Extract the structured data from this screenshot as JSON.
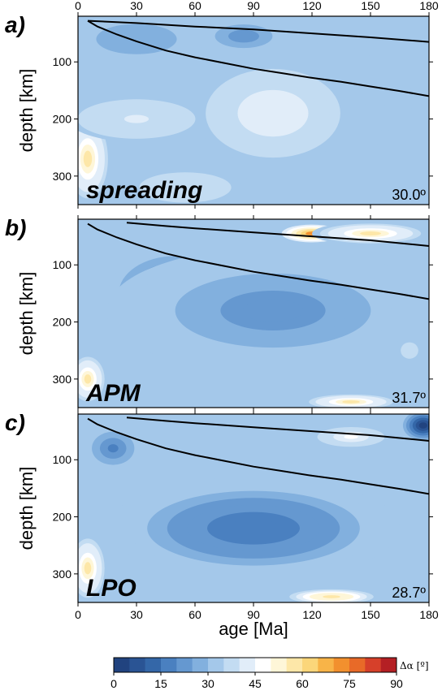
{
  "chart_data": {
    "type": "heatmap",
    "colorbar": {
      "label": "Δα [º]",
      "ticks": [
        "0",
        "15",
        "30",
        "45",
        "60",
        "75",
        "90"
      ],
      "range": [
        0,
        90
      ],
      "bins": 18,
      "colors": [
        "#21437f",
        "#2a5494",
        "#3467a8",
        "#4a80c0",
        "#6598d0",
        "#82b0de",
        "#a4c8ea",
        "#c3dcf2",
        "#e1edf9",
        "#ffffff",
        "#fef6d8",
        "#fde7a8",
        "#fbd67a",
        "#f8b448",
        "#f2902e",
        "#e86a28",
        "#d6402a",
        "#b41f24"
      ]
    },
    "xlabel": "age [Ma]",
    "x_ticks": [
      "0",
      "30",
      "60",
      "90",
      "120",
      "150",
      "180"
    ],
    "xlim": [
      0,
      180
    ],
    "ylabel": "depth [km]",
    "y_ticks": [
      "100",
      "200",
      "300"
    ],
    "ylim": [
      350,
      20
    ],
    "panels": [
      {
        "letter": "a)",
        "model": "spreading",
        "misfit": "30.0º",
        "lines": [
          {
            "x": [
              5,
              30,
              60,
              90,
              120,
              150,
              180
            ],
            "y": [
              28,
              32,
              38,
              43,
              50,
              57,
              65
            ]
          },
          {
            "x": [
              5,
              10,
              20,
              30,
              45,
              60,
              75,
              90,
              105,
              120,
              135,
              150,
              165,
              180
            ],
            "y": [
              28,
              38,
              52,
              64,
              80,
              92,
              102,
              112,
              120,
              128,
              135,
              143,
              151,
              160
            ]
          }
        ],
        "blobs": [
          {
            "cx": 30,
            "cy": 60,
            "rx": 35,
            "ry": 45,
            "v": 25
          },
          {
            "cx": 85,
            "cy": 55,
            "rx": 25,
            "ry": 35,
            "v": 22
          },
          {
            "cx": 140,
            "cy": 80,
            "rx": 20,
            "ry": 25,
            "v": 32
          },
          {
            "cx": 165,
            "cy": 200,
            "rx": 20,
            "ry": 55,
            "v": 31
          },
          {
            "cx": 55,
            "cy": 320,
            "rx": 40,
            "ry": 45,
            "v": 36
          },
          {
            "cx": 5,
            "cy": 270,
            "rx": 12,
            "ry": 80,
            "v": 55
          },
          {
            "cx": 100,
            "cy": 190,
            "rx": 40,
            "ry": 90,
            "v": 44
          },
          {
            "cx": 30,
            "cy": 200,
            "rx": 35,
            "ry": 40,
            "v": 41
          }
        ]
      },
      {
        "letter": "b)",
        "model": "APM",
        "misfit": "31.7º",
        "lines": [
          {
            "x": [
              25,
              45,
              60,
              90,
              120,
              150,
              180
            ],
            "y": [
              26,
              32,
              36,
              43,
              50,
              57,
              67
            ]
          },
          {
            "x": [
              5,
              10,
              20,
              30,
              45,
              60,
              75,
              90,
              105,
              120,
              135,
              150,
              165,
              180
            ],
            "y": [
              28,
              38,
              52,
              64,
              80,
              92,
              102,
              112,
              120,
              128,
              135,
              143,
              151,
              160
            ]
          }
        ],
        "blobs": [
          {
            "cx": 105,
            "cy": 200,
            "rx": 55,
            "ry": 45,
            "v": 3
          },
          {
            "cx": 50,
            "cy": 150,
            "rx": 40,
            "ry": 90,
            "v": 14
          },
          {
            "cx": 100,
            "cy": 180,
            "rx": 85,
            "ry": 110,
            "v": 22
          },
          {
            "cx": 120,
            "cy": 45,
            "rx": 18,
            "ry": 18,
            "v": 70
          },
          {
            "cx": 150,
            "cy": 45,
            "rx": 30,
            "ry": 20,
            "v": 55
          },
          {
            "cx": 5,
            "cy": 300,
            "rx": 10,
            "ry": 45,
            "v": 55
          },
          {
            "cx": 140,
            "cy": 340,
            "rx": 25,
            "ry": 15,
            "v": 55
          },
          {
            "cx": 170,
            "cy": 250,
            "rx": 25,
            "ry": 80,
            "v": 35
          }
        ]
      },
      {
        "letter": "c)",
        "model": "LPO",
        "misfit": "28.7º",
        "lines": [
          {
            "x": [
              25,
              45,
              60,
              90,
              120,
              150,
              180
            ],
            "y": [
              26,
              32,
              36,
              43,
              50,
              57,
              67
            ]
          },
          {
            "x": [
              5,
              10,
              20,
              30,
              45,
              60,
              75,
              90,
              105,
              120,
              135,
              150,
              165,
              180
            ],
            "y": [
              28,
              38,
              52,
              64,
              80,
              92,
              102,
              112,
              120,
              128,
              135,
              143,
              151,
              160
            ]
          }
        ],
        "blobs": [
          {
            "cx": 90,
            "cy": 210,
            "rx": 45,
            "ry": 55,
            "v": 3
          },
          {
            "cx": 90,
            "cy": 220,
            "rx": 75,
            "ry": 90,
            "v": 15
          },
          {
            "cx": 18,
            "cy": 80,
            "rx": 15,
            "ry": 40,
            "v": 18
          },
          {
            "cx": 177,
            "cy": 40,
            "rx": 12,
            "ry": 30,
            "v": 3
          },
          {
            "cx": 5,
            "cy": 290,
            "rx": 10,
            "ry": 60,
            "v": 55
          },
          {
            "cx": 130,
            "cy": 340,
            "rx": 25,
            "ry": 15,
            "v": 58
          },
          {
            "cx": 140,
            "cy": 60,
            "rx": 20,
            "ry": 20,
            "v": 45
          }
        ]
      }
    ]
  }
}
